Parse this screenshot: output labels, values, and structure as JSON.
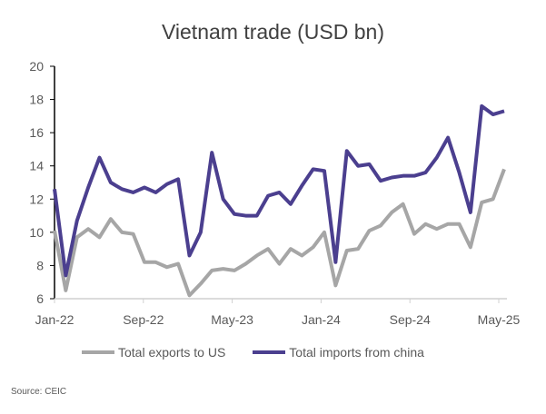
{
  "chart_data": {
    "type": "line",
    "title": "Vietnam trade (USD bn)",
    "ylim": [
      6,
      20
    ],
    "yticks": [
      6,
      8,
      10,
      12,
      14,
      16,
      18,
      20
    ],
    "xticks": [
      "Jan-22",
      "Sep-22",
      "May-23",
      "Jan-24",
      "Sep-24",
      "May-25"
    ],
    "x_range": [
      "Jan-22",
      "May-25"
    ],
    "grid": false,
    "legend": "bottom",
    "series": [
      {
        "name": "Total exports to US",
        "color": "#A6A6A6",
        "values": [
          10.1,
          6.5,
          9.7,
          10.2,
          9.7,
          10.8,
          10.0,
          9.9,
          8.2,
          8.2,
          7.9,
          8.1,
          6.2,
          6.9,
          7.7,
          7.8,
          7.7,
          8.1,
          8.6,
          9.0,
          8.1,
          9.0,
          8.6,
          9.1,
          10.0,
          6.8,
          8.9,
          9.0,
          10.1,
          10.4,
          11.2,
          11.7,
          9.9,
          10.5,
          10.2,
          10.5,
          10.5,
          9.1,
          11.8,
          12.0,
          13.8
        ]
      },
      {
        "name": "Total imports from china",
        "color": "#4B3F8F",
        "values": [
          12.6,
          7.4,
          10.7,
          12.7,
          14.5,
          13.0,
          12.6,
          12.4,
          12.7,
          12.4,
          12.9,
          13.2,
          8.6,
          10.0,
          14.8,
          12.0,
          11.1,
          11.0,
          11.0,
          12.2,
          12.4,
          11.7,
          12.8,
          13.8,
          13.7,
          8.2,
          14.9,
          14.0,
          14.1,
          13.1,
          13.3,
          13.4,
          13.4,
          13.6,
          14.5,
          15.7,
          13.6,
          11.2,
          17.6,
          17.1,
          17.3
        ]
      }
    ],
    "source": "Source: CEIC"
  }
}
